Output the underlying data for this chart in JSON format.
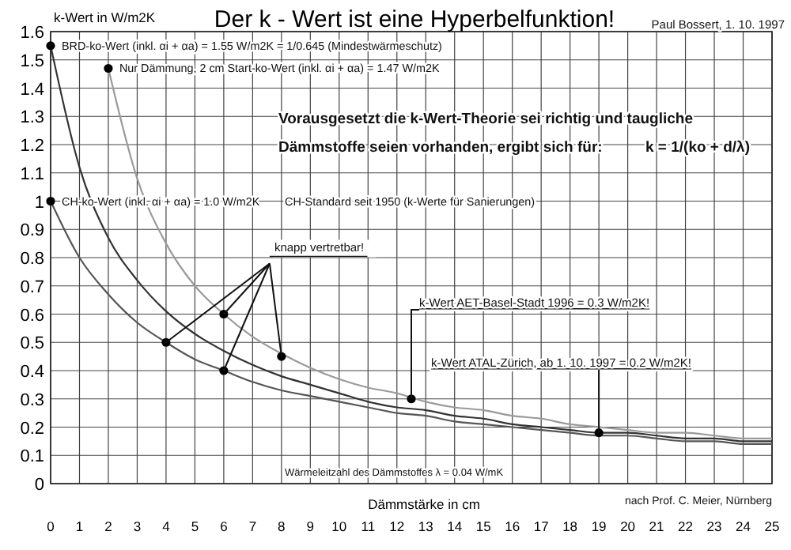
{
  "chart_data": {
    "type": "line",
    "title": "Der k - Wert ist eine Hyperbelfunktion!",
    "xlabel": "Dämmstärke in cm",
    "ylabel": "k-Wert in W/m2K",
    "xlim": [
      0,
      25
    ],
    "xticks": [
      0,
      1,
      2,
      3,
      4,
      5,
      6,
      7,
      8,
      9,
      10,
      11,
      12,
      13,
      14,
      15,
      16,
      17,
      18,
      19,
      20,
      21,
      22,
      23,
      24,
      25
    ],
    "ylim": [
      0,
      1.6
    ],
    "yticks": [
      0,
      0.1,
      0.2,
      0.3,
      0.4,
      0.5,
      0.6,
      0.7,
      0.8,
      0.9,
      1,
      1.1,
      1.2,
      1.3,
      1.4,
      1.5,
      1.6
    ],
    "grid": true,
    "marker": "none",
    "line_style": "solid",
    "series": [
      {
        "color": "#333333",
        "x": [
          0,
          1,
          2,
          3,
          4,
          5,
          6,
          7,
          8,
          9,
          10,
          11,
          12,
          13,
          14,
          15,
          16,
          17,
          18,
          19,
          20,
          21,
          22,
          23,
          24,
          25
        ],
        "values": [
          1.55,
          1.12,
          0.87,
          0.72,
          0.61,
          0.53,
          0.47,
          0.42,
          0.38,
          0.35,
          0.32,
          0.29,
          0.27,
          0.26,
          0.24,
          0.23,
          0.21,
          0.2,
          0.19,
          0.18,
          0.18,
          0.17,
          0.16,
          0.16,
          0.15,
          0.15
        ]
      },
      {
        "color": "#9a9a9a",
        "x": [
          2,
          3,
          4,
          5,
          6,
          7,
          8,
          9,
          10,
          11,
          12,
          13,
          14,
          15,
          16,
          17,
          18,
          19,
          20,
          21,
          22,
          23,
          24,
          25
        ],
        "values": [
          1.47,
          1.08,
          0.85,
          0.7,
          0.6,
          0.52,
          0.46,
          0.41,
          0.37,
          0.34,
          0.32,
          0.29,
          0.27,
          0.26,
          0.24,
          0.23,
          0.21,
          0.2,
          0.19,
          0.18,
          0.18,
          0.17,
          0.16,
          0.16
        ]
      },
      {
        "color": "#555555",
        "x": [
          0,
          1,
          2,
          3,
          4,
          5,
          6,
          7,
          8,
          9,
          10,
          11,
          12,
          13,
          14,
          15,
          16,
          17,
          18,
          19,
          20,
          21,
          22,
          23,
          24,
          25
        ],
        "values": [
          1,
          0.8,
          0.67,
          0.57,
          0.5,
          0.44,
          0.4,
          0.36,
          0.33,
          0.31,
          0.29,
          0.27,
          0.25,
          0.24,
          0.22,
          0.21,
          0.2,
          0.19,
          0.18,
          0.17,
          0.17,
          0.16,
          0.15,
          0.15,
          0.14,
          0.14
        ]
      },
      {
        "type": "scatter",
        "marker": "circle",
        "color": "#000000",
        "x": [
          0,
          2,
          0
        ],
        "values": [
          1.55,
          1.47,
          1
        ]
      },
      {
        "type": "scatter",
        "marker": "circle",
        "color": "#000000",
        "x": [
          4,
          6,
          6,
          8
        ],
        "values": [
          0.5,
          0.6,
          0.4,
          0.45
        ]
      },
      {
        "type": "scatter",
        "marker": "circle",
        "color": "#000000",
        "x": [
          12.5,
          19
        ],
        "values": [
          0.3,
          0.18
        ]
      }
    ],
    "annotations": [
      "Paul Bossert, 1. 10. 1997",
      {
        "text": "BRD-ko-Wert (inkl. αi + αa) = 1.55 W/m2K = 1/0.645  (Mindestwärmeschutz)",
        "x": 0,
        "y": 1.55
      },
      {
        "text": "Nur Dämmung, 2 cm Start-ko-Wert (inkl. αi + αa) = 1.47 W/m2K",
        "x": 2,
        "y": 1.47
      },
      {
        "text": "CH-ko-Wert (inkl. αi + αa) = 1.0 W/m2K",
        "x": 0,
        "y": 1
      },
      "CH-Standard seit 1950 (k-Werte für Sanierungen)",
      "Vorausgesetzt die k-Wert-Theorie sei richtig und taugliche",
      "Dämmstoffe seien vorhanden, ergibt sich für:",
      "k = 1/(ko + d/λ)",
      {
        "text": "knapp vertretbar!",
        "x": 6,
        "y": 0.6
      },
      {
        "text": "k-Wert AET-Basel-Stadt 1996 = 0.3 W/m2K!",
        "x": 12.5,
        "y": 0.3
      },
      {
        "text": "k-Wert ATAL-Zürich, ab 1. 10. 1997 = 0.2 W/m2K!",
        "x": 19,
        "y": 0.18
      },
      "Wärmeleitzahl des Dämmstoffes λ = 0.04 W/mK",
      "nach Prof. C. Meier, Nürnberg"
    ]
  }
}
